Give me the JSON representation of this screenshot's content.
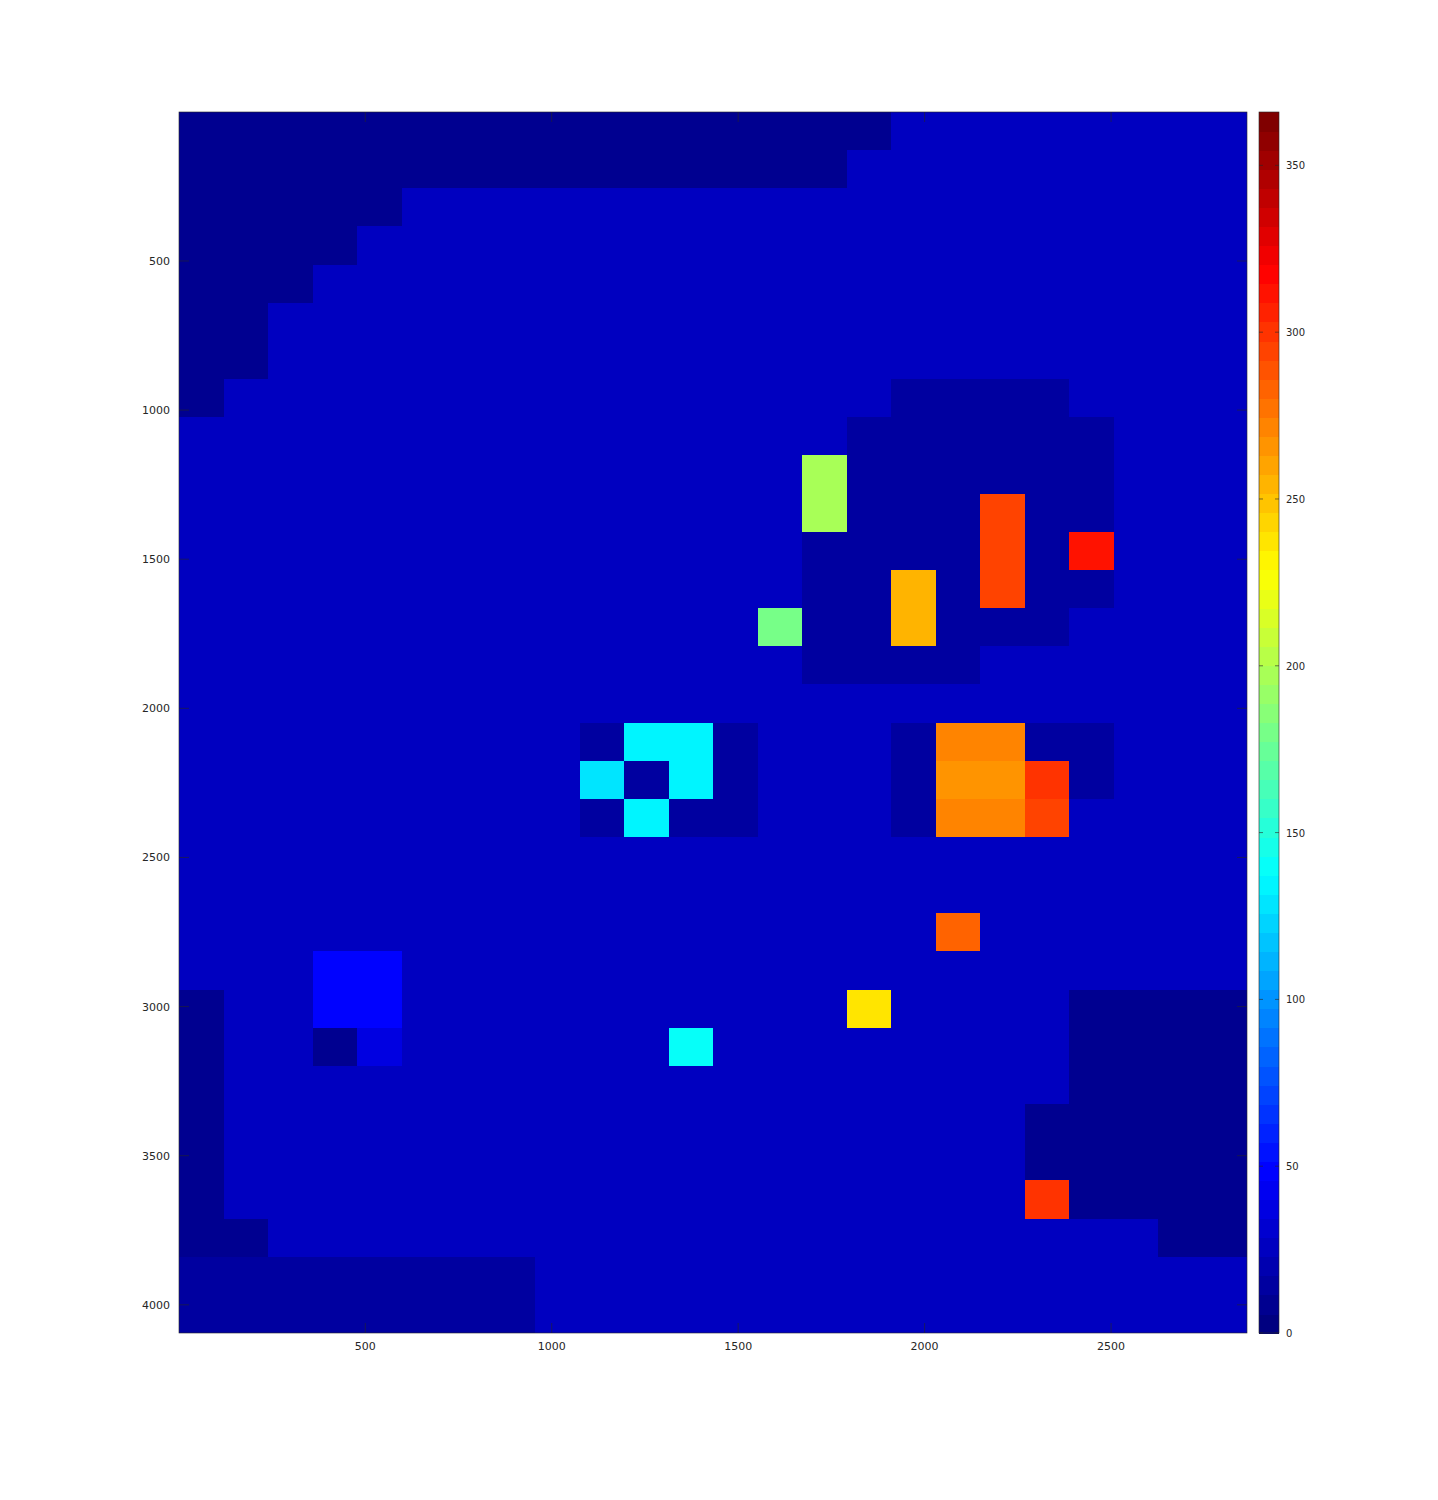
{
  "chart_data": {
    "type": "heatmap",
    "xlim": [
      0.5,
      2864.5
    ],
    "ylim": [
      0.5,
      4094.5
    ],
    "xticks": [
      500,
      1000,
      1500,
      2000,
      2500
    ],
    "yticks": [
      500,
      1000,
      1500,
      2000,
      2500,
      3000,
      3500,
      4000
    ],
    "colorbar_range": [
      0,
      366
    ],
    "colorbar_ticks": [
      0,
      50,
      100,
      150,
      200,
      250,
      300,
      350
    ],
    "cells": [
      [
        6,
        6,
        6,
        6,
        6,
        6,
        6,
        6,
        6,
        6,
        6,
        6,
        6,
        6,
        6,
        6,
        24,
        24,
        24,
        24,
        24,
        24,
        24,
        24
      ],
      [
        6,
        6,
        6,
        6,
        6,
        6,
        6,
        6,
        6,
        6,
        6,
        6,
        6,
        6,
        6,
        24,
        24,
        24,
        24,
        24,
        24,
        24,
        24,
        24
      ],
      [
        6,
        6,
        6,
        6,
        6,
        24,
        24,
        24,
        24,
        24,
        24,
        24,
        24,
        24,
        24,
        24,
        24,
        24,
        24,
        24,
        24,
        24,
        24,
        24
      ],
      [
        6,
        6,
        6,
        6,
        24,
        24,
        24,
        24,
        24,
        24,
        24,
        24,
        24,
        24,
        24,
        24,
        24,
        24,
        24,
        24,
        24,
        24,
        24,
        24
      ],
      [
        6,
        6,
        6,
        24,
        24,
        24,
        24,
        24,
        24,
        24,
        24,
        24,
        24,
        24,
        24,
        24,
        24,
        24,
        24,
        24,
        24,
        24,
        24,
        24
      ],
      [
        6,
        6,
        24,
        24,
        24,
        24,
        24,
        24,
        24,
        24,
        24,
        24,
        24,
        24,
        24,
        24,
        24,
        24,
        24,
        24,
        24,
        24,
        24,
        24
      ],
      [
        6,
        6,
        24,
        24,
        24,
        24,
        24,
        24,
        24,
        24,
        24,
        24,
        24,
        24,
        24,
        24,
        24,
        24,
        24,
        24,
        24,
        24,
        24,
        24
      ],
      [
        6,
        24,
        24,
        24,
        24,
        24,
        24,
        24,
        24,
        24,
        24,
        24,
        24,
        24,
        24,
        24,
        14,
        14,
        14,
        14,
        24,
        24,
        24,
        24
      ],
      [
        24,
        24,
        24,
        24,
        24,
        24,
        24,
        24,
        24,
        24,
        24,
        24,
        24,
        24,
        24,
        14,
        14,
        14,
        14,
        14,
        14,
        24,
        24,
        24
      ],
      [
        24,
        24,
        24,
        24,
        24,
        24,
        24,
        24,
        24,
        24,
        24,
        24,
        24,
        24,
        200,
        14,
        14,
        14,
        14,
        14,
        14,
        24,
        24,
        24
      ],
      [
        24,
        24,
        24,
        24,
        24,
        24,
        24,
        24,
        24,
        24,
        24,
        24,
        24,
        24,
        200,
        14,
        14,
        14,
        295,
        14,
        14,
        24,
        24,
        24
      ],
      [
        24,
        24,
        24,
        24,
        24,
        24,
        24,
        24,
        24,
        24,
        24,
        24,
        24,
        24,
        14,
        14,
        14,
        14,
        295,
        14,
        310,
        24,
        24,
        24
      ],
      [
        24,
        24,
        24,
        24,
        24,
        24,
        24,
        24,
        24,
        24,
        24,
        24,
        24,
        24,
        14,
        14,
        255,
        14,
        295,
        14,
        14,
        24,
        24,
        24
      ],
      [
        24,
        24,
        24,
        24,
        24,
        24,
        24,
        24,
        24,
        24,
        24,
        24,
        24,
        180,
        14,
        14,
        255,
        14,
        14,
        14,
        24,
        24,
        24,
        24
      ],
      [
        24,
        24,
        24,
        24,
        24,
        24,
        24,
        24,
        24,
        24,
        24,
        24,
        24,
        24,
        14,
        14,
        14,
        14,
        24,
        24,
        24,
        24,
        24,
        24
      ],
      [
        24,
        24,
        24,
        24,
        24,
        24,
        24,
        24,
        24,
        24,
        24,
        24,
        24,
        24,
        24,
        24,
        24,
        24,
        24,
        24,
        24,
        24,
        24,
        24
      ],
      [
        24,
        24,
        24,
        24,
        24,
        24,
        24,
        24,
        24,
        14,
        135,
        135,
        14,
        24,
        24,
        24,
        14,
        270,
        270,
        14,
        14,
        24,
        24,
        24
      ],
      [
        24,
        24,
        24,
        24,
        24,
        24,
        24,
        24,
        24,
        130,
        14,
        135,
        14,
        24,
        24,
        24,
        14,
        265,
        265,
        300,
        14,
        24,
        24,
        24
      ],
      [
        24,
        24,
        24,
        24,
        24,
        24,
        24,
        24,
        24,
        14,
        135,
        14,
        14,
        24,
        24,
        24,
        14,
        270,
        270,
        295,
        24,
        24,
        24,
        24
      ],
      [
        24,
        24,
        24,
        24,
        24,
        24,
        24,
        24,
        24,
        24,
        24,
        24,
        24,
        24,
        24,
        24,
        24,
        24,
        24,
        24,
        24,
        24,
        24,
        24
      ],
      [
        24,
        24,
        24,
        24,
        24,
        24,
        24,
        24,
        24,
        24,
        24,
        24,
        24,
        24,
        24,
        24,
        24,
        24,
        24,
        24,
        24,
        24,
        24,
        24
      ],
      [
        24,
        24,
        24,
        24,
        24,
        24,
        24,
        24,
        24,
        24,
        24,
        24,
        24,
        24,
        24,
        24,
        24,
        285,
        24,
        24,
        24,
        24,
        24,
        24
      ],
      [
        24,
        24,
        24,
        50,
        50,
        24,
        24,
        24,
        24,
        24,
        24,
        24,
        24,
        24,
        24,
        24,
        24,
        24,
        24,
        24,
        24,
        24,
        24,
        24
      ],
      [
        6,
        24,
        24,
        50,
        50,
        24,
        24,
        24,
        24,
        24,
        24,
        24,
        24,
        24,
        24,
        235,
        24,
        24,
        24,
        24,
        6,
        6,
        6,
        6
      ],
      [
        6,
        24,
        24,
        10,
        40,
        24,
        24,
        24,
        24,
        24,
        24,
        140,
        24,
        24,
        24,
        24,
        24,
        24,
        24,
        24,
        6,
        6,
        6,
        6
      ],
      [
        6,
        24,
        24,
        24,
        24,
        24,
        24,
        24,
        24,
        24,
        24,
        24,
        24,
        24,
        24,
        24,
        24,
        24,
        24,
        24,
        6,
        6,
        6,
        6
      ],
      [
        6,
        24,
        24,
        24,
        24,
        24,
        24,
        24,
        24,
        24,
        24,
        24,
        24,
        24,
        24,
        24,
        24,
        24,
        24,
        6,
        6,
        6,
        6,
        6
      ],
      [
        6,
        24,
        24,
        24,
        24,
        24,
        24,
        24,
        24,
        24,
        24,
        24,
        24,
        24,
        24,
        24,
        24,
        24,
        24,
        6,
        6,
        6,
        6,
        6
      ],
      [
        6,
        24,
        24,
        24,
        24,
        24,
        24,
        24,
        24,
        24,
        24,
        24,
        24,
        24,
        24,
        24,
        24,
        24,
        24,
        300,
        6,
        6,
        6,
        6
      ],
      [
        6,
        6,
        24,
        24,
        24,
        24,
        24,
        24,
        24,
        24,
        24,
        24,
        24,
        24,
        24,
        24,
        24,
        24,
        24,
        24,
        24,
        24,
        6,
        6
      ],
      [
        14,
        14,
        14,
        14,
        14,
        14,
        14,
        14,
        24,
        24,
        24,
        24,
        24,
        24,
        24,
        24,
        24,
        24,
        24,
        24,
        24,
        24,
        24,
        24
      ],
      [
        14,
        14,
        14,
        14,
        14,
        14,
        14,
        14,
        24,
        24,
        24,
        24,
        24,
        24,
        24,
        24,
        24,
        24,
        24,
        24,
        24,
        24,
        24,
        24
      ]
    ]
  }
}
